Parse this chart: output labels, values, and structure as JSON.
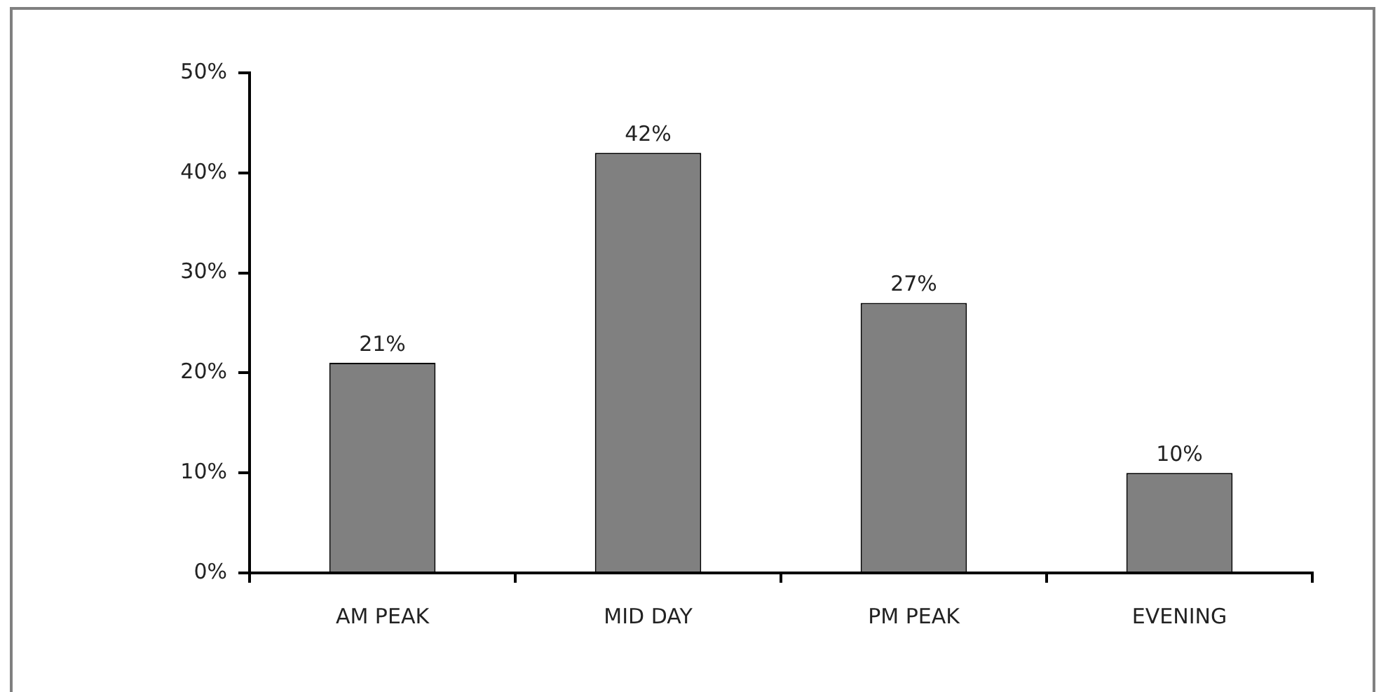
{
  "chart_data": {
    "type": "bar",
    "categories": [
      "AM PEAK",
      "MID DAY",
      "PM PEAK",
      "EVENING"
    ],
    "values": [
      21,
      42,
      27,
      10
    ],
    "color": "#808080",
    "value_labels": [
      "21%",
      "42%",
      "27%",
      "10%"
    ],
    "ylim": [
      0,
      50
    ],
    "yticks": [
      {
        "value": 0,
        "label": "0%"
      },
      {
        "value": 10,
        "label": "10%"
      },
      {
        "value": 20,
        "label": "20%"
      },
      {
        "value": 30,
        "label": "30%"
      },
      {
        "value": 40,
        "label": "40%"
      },
      {
        "value": 50,
        "label": "50%"
      }
    ]
  }
}
